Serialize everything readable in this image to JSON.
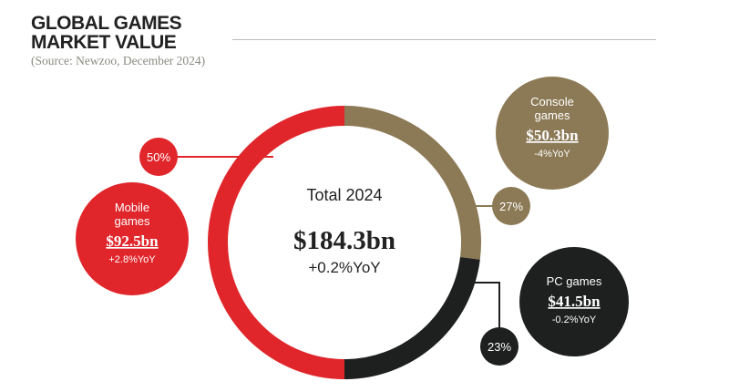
{
  "title_line1": "GLOBAL GAMES",
  "title_line2": "MARKET VALUE",
  "source": "(Source: Newzoo, December 2024)",
  "center": {
    "label": "Total 2024",
    "value": "$184.3bn",
    "change": "+0.2%YoY"
  },
  "chart_data": {
    "type": "pie",
    "title": "Global Games Market Value",
    "total": 184.3,
    "unit": "$bn",
    "segments": [
      {
        "name": "Console games",
        "line1": "Console",
        "line2": "games",
        "value": 50.3,
        "value_label": "$50.3bn",
        "share": 27,
        "share_label": "27%",
        "yoy": "-4%YoY",
        "color": "#8c7a56"
      },
      {
        "name": "PC games",
        "line1": "PC games",
        "line2": "",
        "value": 41.5,
        "value_label": "$41.5bn",
        "share": 23,
        "share_label": "23%",
        "yoy": "-0.2%YoY",
        "color": "#1e1f1f"
      },
      {
        "name": "Mobile games",
        "line1": "Mobile",
        "line2": "games",
        "value": 92.5,
        "value_label": "$92.5bn",
        "share": 50,
        "share_label": "50%",
        "yoy": "+2.8%YoY",
        "color": "#e0262b"
      }
    ]
  }
}
